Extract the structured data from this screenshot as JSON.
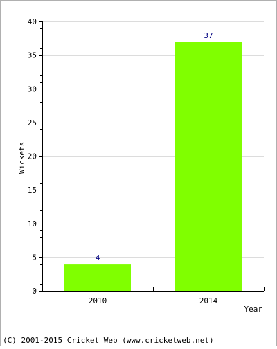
{
  "chart_data": {
    "type": "bar",
    "categories": [
      "2010",
      "2014"
    ],
    "values": [
      4,
      37
    ],
    "data_labels": [
      "4",
      "37"
    ],
    "xlabel": "Year",
    "ylabel": "Wickets",
    "ylim": [
      0,
      40
    ],
    "yticks": [
      0,
      5,
      10,
      15,
      20,
      25,
      30,
      35,
      40
    ],
    "ytick_labels": [
      "0",
      "5",
      "10",
      "15",
      "20",
      "25",
      "30",
      "35",
      "40"
    ],
    "grid": true,
    "bar_color": "#80ff00",
    "label_color": "#000080"
  },
  "footer": {
    "copyright": "(C) 2001-2015 Cricket Web (www.cricketweb.net)"
  }
}
